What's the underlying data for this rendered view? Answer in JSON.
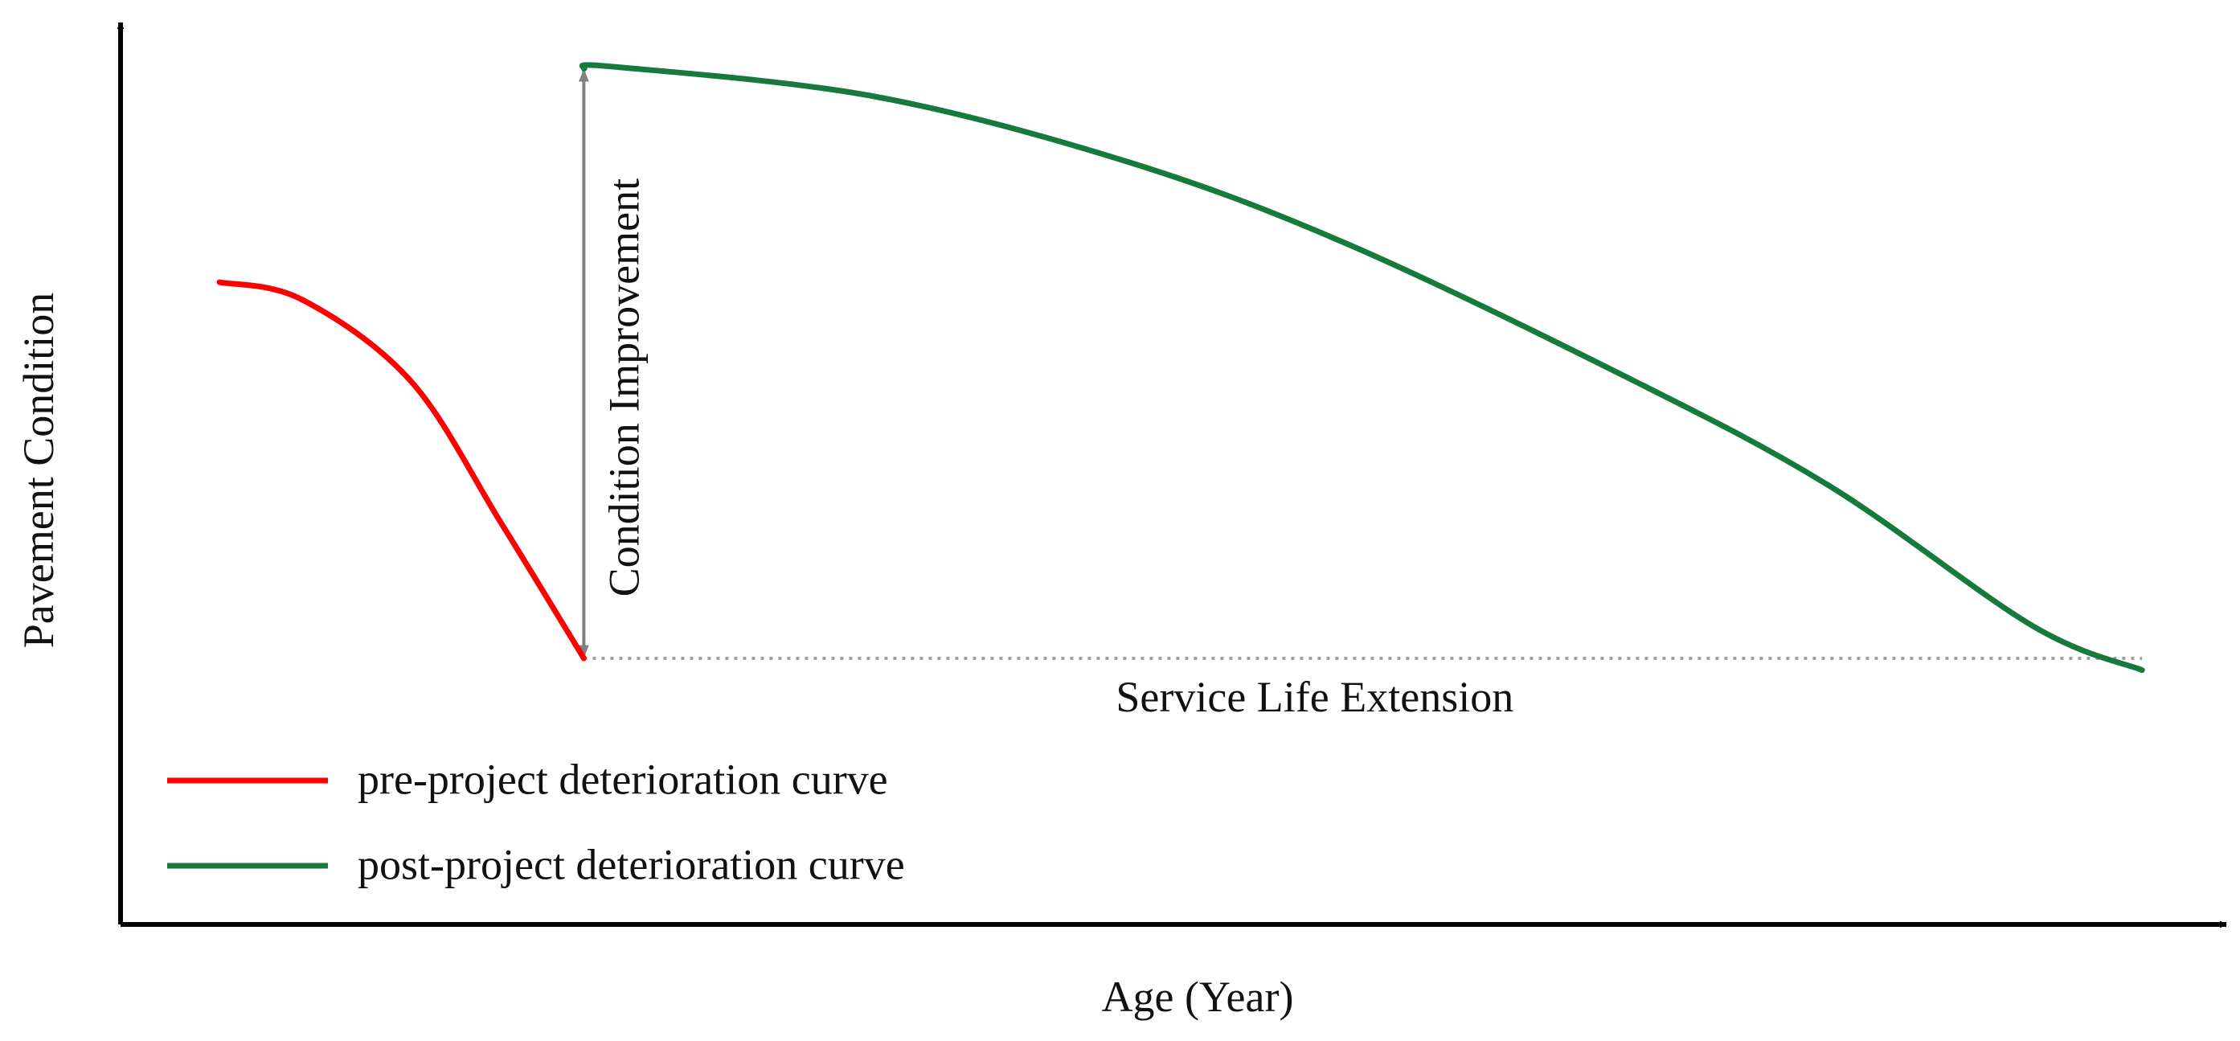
{
  "chart_data": {
    "type": "line",
    "title": "",
    "xlabel": "Age (Year)",
    "ylabel": "Pavement Condition",
    "xlim": [
      0,
      100
    ],
    "ylim": [
      0,
      100
    ],
    "grid": false,
    "legend_position": "bottom-left",
    "series": [
      {
        "name": "pre-project deterioration curve",
        "color": "#ff0000",
        "x": [
          4.7,
          8.6,
          13.8,
          18.1,
          22.0
        ],
        "y": [
          71.2,
          69.3,
          60.2,
          44.4,
          29.5
        ]
      },
      {
        "name": "post-project deterioration curve",
        "color": "#157a3b",
        "x": [
          22.0,
          23.4,
          35.8,
          47.9,
          58.3,
          71.5,
          81.1,
          90.8,
          96.0
        ],
        "y": [
          94.9,
          95.1,
          91.8,
          84.5,
          75.4,
          60.7,
          48.7,
          33.1,
          28.2
        ]
      }
    ],
    "annotations": [
      {
        "text": "Condition Improvement",
        "color": "#808080",
        "x": 22.0,
        "y_from": 29.5,
        "y_to": 94.9
      },
      {
        "text": "Service Life Extension",
        "color": "#a0a0a0",
        "x_from": 22.0,
        "x_to": 96.0,
        "y": 29.5
      }
    ]
  }
}
